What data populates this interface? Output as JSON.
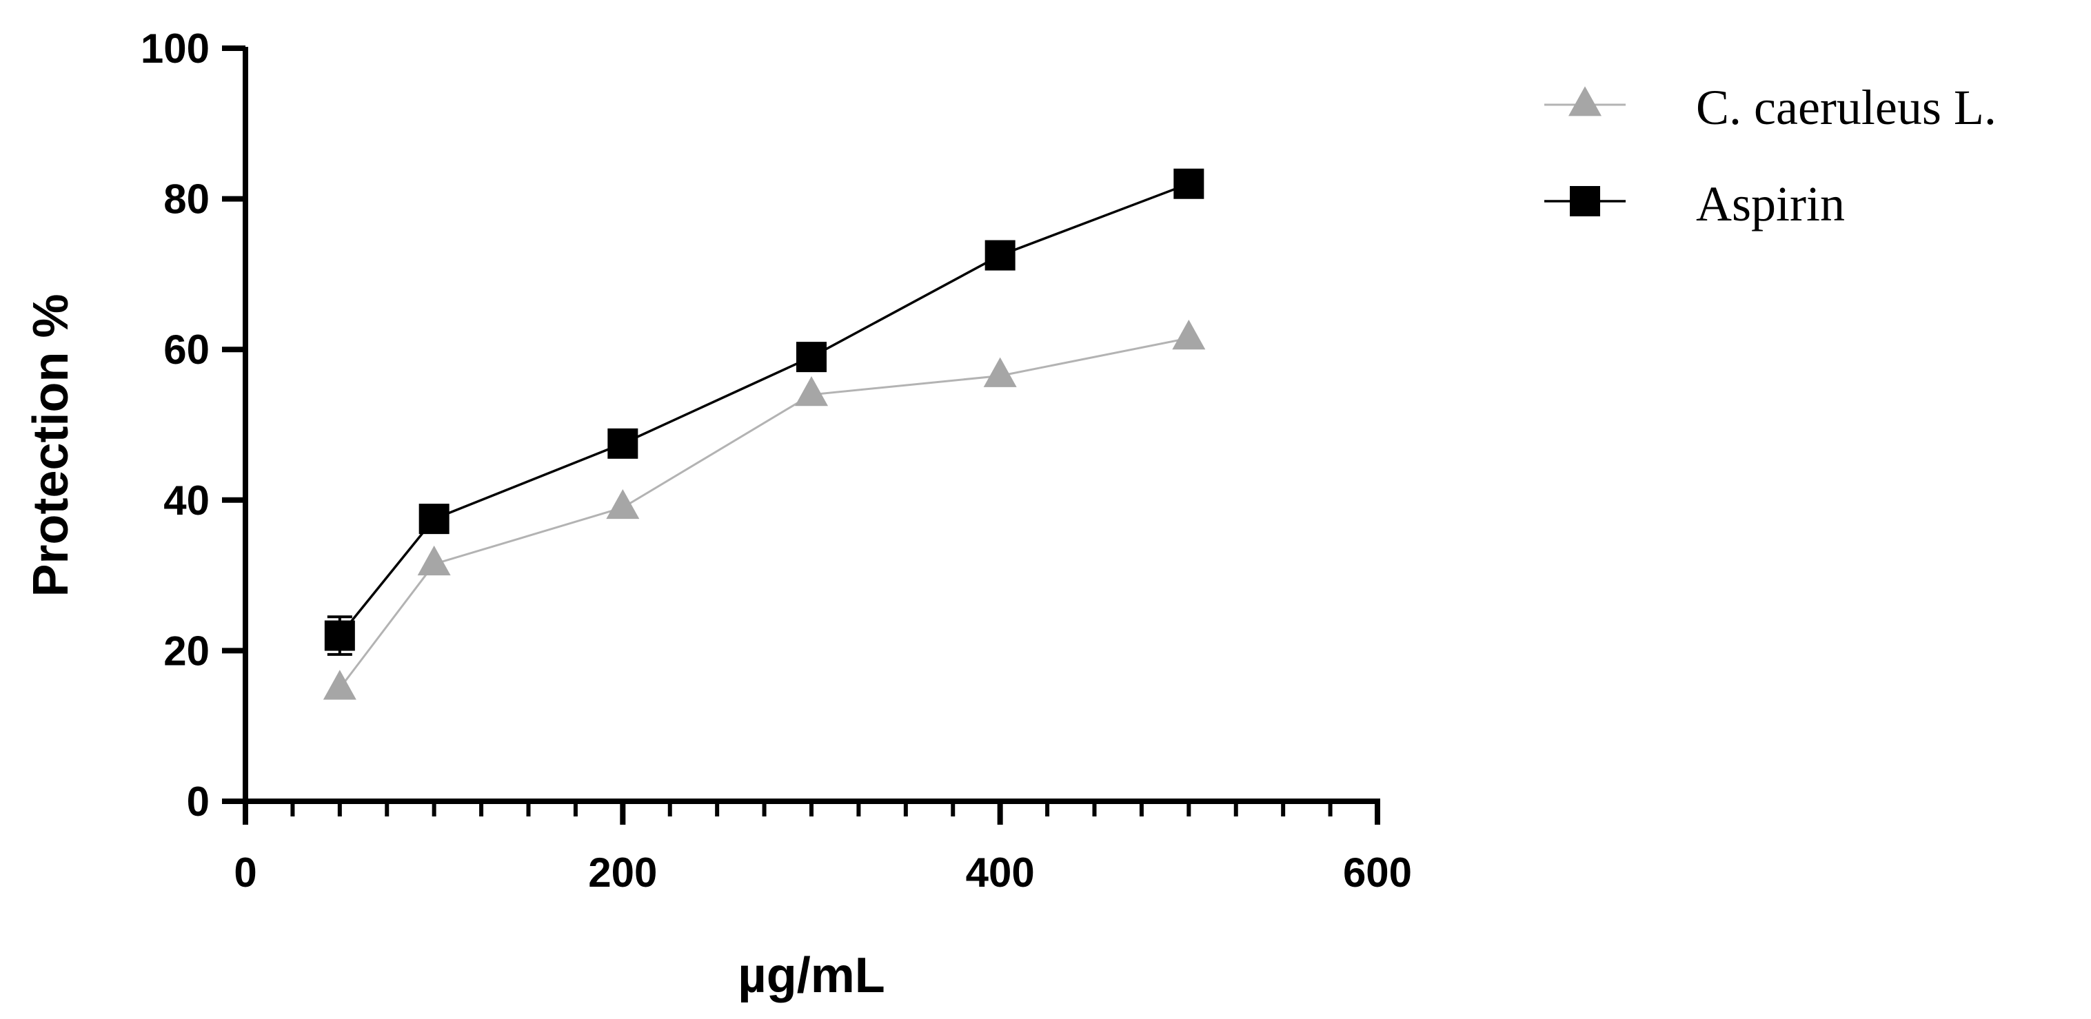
{
  "chart_data": {
    "type": "line",
    "title": "",
    "xlabel": "µg/mL",
    "ylabel": "Protection %",
    "xlim": [
      0,
      600
    ],
    "ylim": [
      0,
      100
    ],
    "x_ticks": [
      0,
      200,
      400,
      600
    ],
    "y_ticks": [
      0,
      20,
      40,
      60,
      80,
      100
    ],
    "x_minor_step": 25,
    "x": [
      50,
      100,
      200,
      300,
      400,
      500
    ],
    "series": [
      {
        "name": "C. caeruleus L.",
        "values": [
          15,
          31.5,
          39,
          54,
          56.5,
          61.5
        ],
        "marker": "triangle",
        "color": "#a6a6a6",
        "line_color": "#b3b3b3"
      },
      {
        "name": "Aspirin",
        "values": [
          22,
          37.5,
          47.5,
          59,
          72.5,
          82
        ],
        "error": [
          2.5,
          0,
          0,
          0,
          0,
          0
        ],
        "marker": "square",
        "color": "#000000",
        "line_color": "#000000"
      }
    ],
    "legend_position": "top-right",
    "grid": false
  }
}
